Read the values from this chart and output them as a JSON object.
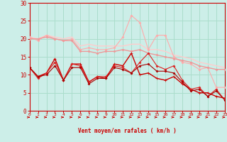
{
  "bg_color": "#cceee8",
  "grid_color": "#aaddcc",
  "xlabel": "Vent moyen/en rafales ( km/h )",
  "xlabel_color": "#cc0000",
  "tick_color": "#cc0000",
  "xmin": 0,
  "xmax": 23,
  "ymin": 0,
  "ymax": 30,
  "yticks": [
    0,
    5,
    10,
    15,
    20,
    25,
    30
  ],
  "xticks": [
    0,
    1,
    2,
    3,
    4,
    5,
    6,
    7,
    8,
    9,
    10,
    11,
    12,
    13,
    14,
    15,
    16,
    17,
    18,
    19,
    20,
    21,
    22,
    23
  ],
  "lines": [
    {
      "x": [
        0,
        1,
        2,
        3,
        4,
        5,
        6,
        7,
        8,
        9,
        10,
        11,
        12,
        13,
        14,
        15,
        16,
        17,
        18,
        19,
        20,
        21,
        22,
        23
      ],
      "y": [
        20.5,
        20.0,
        21.0,
        20.5,
        20.0,
        20.5,
        18.0,
        18.5,
        18.0,
        18.0,
        18.0,
        18.0,
        18.5,
        18.5,
        17.0,
        17.0,
        16.5,
        15.5,
        15.0,
        14.5,
        13.5,
        13.0,
        12.5,
        12.0
      ],
      "color": "#ffcccc",
      "marker": null,
      "markersize": 0,
      "linewidth": 1.0
    },
    {
      "x": [
        0,
        1,
        2,
        3,
        4,
        5,
        6,
        7,
        8,
        9,
        10,
        11,
        12,
        13,
        14,
        15,
        16,
        17,
        18,
        19,
        20,
        21,
        22,
        23
      ],
      "y": [
        20.5,
        19.5,
        21.0,
        20.0,
        19.5,
        20.0,
        17.0,
        17.5,
        17.0,
        17.0,
        17.5,
        20.5,
        26.5,
        24.5,
        17.0,
        21.0,
        21.0,
        15.0,
        13.5,
        13.0,
        11.5,
        12.0,
        6.5,
        6.5
      ],
      "color": "#ffaaaa",
      "marker": "D",
      "markersize": 1.5,
      "linewidth": 0.8
    },
    {
      "x": [
        0,
        1,
        2,
        3,
        4,
        5,
        6,
        7,
        8,
        9,
        10,
        11,
        12,
        13,
        14,
        15,
        16,
        17,
        18,
        19,
        20,
        21,
        22,
        23
      ],
      "y": [
        20.0,
        20.0,
        20.5,
        20.0,
        19.5,
        19.5,
        16.5,
        16.5,
        16.0,
        16.5,
        16.5,
        17.0,
        16.5,
        17.0,
        16.0,
        15.5,
        15.0,
        14.5,
        14.0,
        13.5,
        12.5,
        12.0,
        11.5,
        11.5
      ],
      "color": "#ee9999",
      "marker": "D",
      "markersize": 1.5,
      "linewidth": 1.0
    },
    {
      "x": [
        0,
        1,
        2,
        3,
        4,
        5,
        6,
        7,
        8,
        9,
        10,
        11,
        12,
        13,
        14,
        15,
        16,
        17,
        18,
        19,
        20,
        21,
        22,
        23
      ],
      "y": [
        12.0,
        9.5,
        10.5,
        14.5,
        8.5,
        13.0,
        13.0,
        8.0,
        9.5,
        9.0,
        13.0,
        12.5,
        16.0,
        10.0,
        10.5,
        9.0,
        8.5,
        9.5,
        7.5,
        6.0,
        5.0,
        5.0,
        4.0,
        3.5
      ],
      "color": "#cc0000",
      "marker": "+",
      "markersize": 3.5,
      "linewidth": 1.0
    },
    {
      "x": [
        0,
        1,
        2,
        3,
        4,
        5,
        6,
        7,
        8,
        9,
        10,
        11,
        12,
        13,
        14,
        15,
        16,
        17,
        18,
        19,
        20,
        21,
        22,
        23
      ],
      "y": [
        12.0,
        9.0,
        10.5,
        13.5,
        8.5,
        13.0,
        12.5,
        8.0,
        9.5,
        9.5,
        12.5,
        12.0,
        10.5,
        13.5,
        16.0,
        12.5,
        11.5,
        12.5,
        8.5,
        6.0,
        6.5,
        4.0,
        6.0,
        3.0
      ],
      "color": "#dd2222",
      "marker": "D",
      "markersize": 1.5,
      "linewidth": 0.8
    },
    {
      "x": [
        0,
        1,
        2,
        3,
        4,
        5,
        6,
        7,
        8,
        9,
        10,
        11,
        12,
        13,
        14,
        15,
        16,
        17,
        18,
        19,
        20,
        21,
        22,
        23
      ],
      "y": [
        12.0,
        9.5,
        10.0,
        12.5,
        8.5,
        12.0,
        12.0,
        7.5,
        9.0,
        9.0,
        12.0,
        11.5,
        10.5,
        12.5,
        13.0,
        11.0,
        11.0,
        10.5,
        8.0,
        5.5,
        6.0,
        4.0,
        5.5,
        3.0
      ],
      "color": "#aa0000",
      "marker": "D",
      "markersize": 1.5,
      "linewidth": 0.8
    }
  ],
  "arrow_rotations": [
    -35,
    -40,
    -30,
    -45,
    -35,
    -40,
    -30,
    -45,
    -35,
    -40,
    -30,
    -45,
    -35,
    -40,
    -30,
    -45,
    -35,
    -40,
    -30,
    -45,
    -35,
    -40,
    -30,
    -45
  ]
}
